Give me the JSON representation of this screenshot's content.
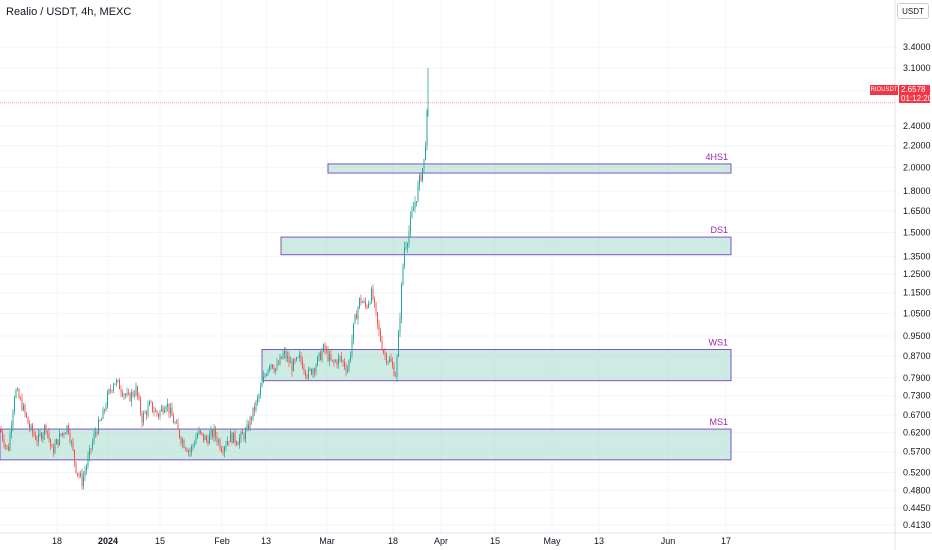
{
  "header": {
    "title": "Realio / USDT, 4h, MEXC"
  },
  "toolbar": {
    "currency_label": "USDT"
  },
  "last_price": {
    "symbol": "RIOUSDT",
    "price": "2.6578",
    "countdown": "01:12:20",
    "value": 2.6578
  },
  "colors": {
    "up": "#26a69a",
    "down": "#ef5350",
    "zone_fill": "#b2dfd4",
    "zone_border": "#7e57c2",
    "zone_label": "#9c27b0",
    "price_line": "#f23645"
  },
  "chart_data": {
    "type": "candlestick",
    "title": "Realio / USDT, 4h, MEXC",
    "yscale": "log",
    "ylim": [
      0.4,
      3.65
    ],
    "y_ticks": [
      "3.4000",
      "3.1000",
      "2.8000",
      "2.4000",
      "2.2000",
      "2.0000",
      "1.8000",
      "1.6500",
      "1.5000",
      "1.3500",
      "1.2500",
      "1.1500",
      "1.0500",
      "0.9500",
      "0.8700",
      "0.7900",
      "0.7300",
      "0.6700",
      "0.6200",
      "0.5700",
      "0.5200",
      "0.4800",
      "0.4450",
      "0.4130"
    ],
    "x_ticks": [
      "18",
      "2024",
      "15",
      "Feb",
      "13",
      "Mar",
      "18",
      "Apr",
      "15",
      "May",
      "13",
      "Jun",
      "17"
    ],
    "zones": [
      {
        "label": "4HS1",
        "low": 1.95,
        "high": 2.03
      },
      {
        "label": "DS1",
        "low": 1.36,
        "high": 1.47
      },
      {
        "label": "WS1",
        "low": 0.78,
        "high": 0.895
      },
      {
        "label": "MS1",
        "low": 0.55,
        "high": 0.63
      }
    ],
    "price_path": [
      [
        0,
        0.63
      ],
      [
        8,
        0.57
      ],
      [
        15,
        0.75
      ],
      [
        22,
        0.7
      ],
      [
        30,
        0.63
      ],
      [
        38,
        0.6
      ],
      [
        46,
        0.64
      ],
      [
        52,
        0.57
      ],
      [
        60,
        0.61
      ],
      [
        68,
        0.64
      ],
      [
        76,
        0.53
      ],
      [
        82,
        0.5
      ],
      [
        88,
        0.55
      ],
      [
        95,
        0.62
      ],
      [
        102,
        0.66
      ],
      [
        108,
        0.73
      ],
      [
        114,
        0.78
      ],
      [
        120,
        0.76
      ],
      [
        128,
        0.72
      ],
      [
        136,
        0.75
      ],
      [
        142,
        0.66
      ],
      [
        150,
        0.7
      ],
      [
        158,
        0.67
      ],
      [
        166,
        0.71
      ],
      [
        174,
        0.65
      ],
      [
        182,
        0.6
      ],
      [
        190,
        0.57
      ],
      [
        198,
        0.62
      ],
      [
        206,
        0.6
      ],
      [
        214,
        0.62
      ],
      [
        222,
        0.58
      ],
      [
        230,
        0.61
      ],
      [
        238,
        0.6
      ],
      [
        246,
        0.62
      ],
      [
        252,
        0.67
      ],
      [
        258,
        0.72
      ],
      [
        264,
        0.79
      ],
      [
        270,
        0.85
      ],
      [
        276,
        0.82
      ],
      [
        284,
        0.88
      ],
      [
        292,
        0.83
      ],
      [
        300,
        0.86
      ],
      [
        308,
        0.8
      ],
      [
        316,
        0.84
      ],
      [
        324,
        0.9
      ],
      [
        332,
        0.84
      ],
      [
        340,
        0.86
      ],
      [
        348,
        0.82
      ],
      [
        354,
        1.0
      ],
      [
        360,
        1.12
      ],
      [
        366,
        1.08
      ],
      [
        372,
        1.15
      ],
      [
        378,
        0.98
      ],
      [
        384,
        0.88
      ],
      [
        390,
        0.85
      ],
      [
        396,
        0.8
      ],
      [
        400,
        1.05
      ],
      [
        404,
        1.4
      ],
      [
        408,
        1.48
      ],
      [
        412,
        1.62
      ],
      [
        416,
        1.75
      ],
      [
        420,
        1.9
      ],
      [
        424,
        2.05
      ],
      [
        428,
        2.66
      ]
    ]
  }
}
